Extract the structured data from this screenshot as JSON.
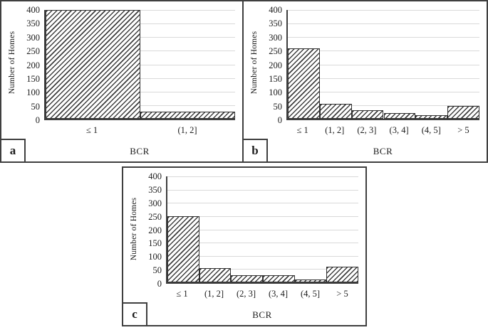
{
  "figure": {
    "background": "#ffffff"
  },
  "panels": [
    {
      "label": "a"
    },
    {
      "label": "b"
    },
    {
      "label": "c"
    }
  ],
  "axis": {
    "ylabel": "Number of Homes",
    "xlabel": "BCR",
    "ylim": [
      0,
      400
    ],
    "ytick_step": 50,
    "yticks": [
      400,
      350,
      300,
      250,
      200,
      150,
      100,
      50,
      0
    ],
    "gridlines": "horizontal-light"
  },
  "chart_data": [
    {
      "type": "bar",
      "panel_label": "a",
      "title": "",
      "xlabel": "BCR",
      "ylabel": "Number of Homes",
      "ylim": [
        0,
        400
      ],
      "categories": [
        "≤ 1",
        "(1, 2]"
      ],
      "values": [
        400,
        25
      ],
      "bar_style": "diagonal-hatch",
      "gap": 0
    },
    {
      "type": "bar",
      "panel_label": "b",
      "title": "",
      "xlabel": "BCR",
      "ylabel": "Number of Homes",
      "ylim": [
        0,
        400
      ],
      "categories": [
        "≤ 1",
        "(1, 2]",
        "(2, 3]",
        "(3, 4]",
        "(4, 5]",
        "> 5"
      ],
      "values": [
        258,
        55,
        32,
        20,
        12,
        48
      ],
      "bar_style": "diagonal-hatch",
      "gap": 0
    },
    {
      "type": "bar",
      "panel_label": "c",
      "title": "",
      "xlabel": "BCR",
      "ylabel": "Number of Homes",
      "ylim": [
        0,
        400
      ],
      "categories": [
        "≤ 1",
        "(1, 2]",
        "(2, 3]",
        "(3, 4]",
        "(4, 5]",
        "> 5"
      ],
      "values": [
        250,
        55,
        28,
        28,
        12,
        60
      ],
      "bar_style": "diagonal-hatch",
      "gap": 0
    }
  ],
  "colors": {
    "hatch": "#3d3d3d",
    "bar_fill": "#ffffff",
    "bar_border": "#2f2f2f",
    "gridline": "#d9d9d9",
    "axis": "#3f3f3f",
    "panel_border": "#3f3f3f",
    "text": "#1c1c1c"
  }
}
